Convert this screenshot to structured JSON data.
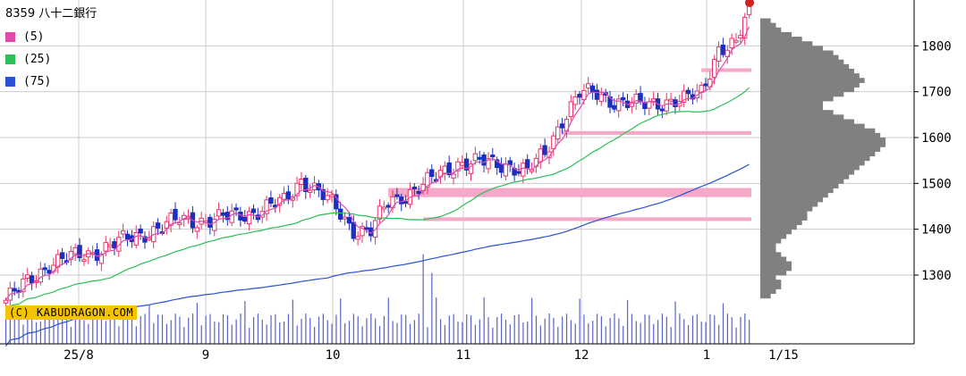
{
  "header": {
    "title": "8359 八十二銀行"
  },
  "legend": [
    {
      "label": "(5)",
      "color": "#e04aa8"
    },
    {
      "label": "(25)",
      "color": "#2bbf5a"
    },
    {
      "label": "(75)",
      "color": "#2a52d6"
    }
  ],
  "copyright": "(C) KABUDRAGON.COM",
  "colors": {
    "up": "#e8346a",
    "down": "#1c2fc0",
    "volume": "#5a63c8",
    "profile": "#808080",
    "band": "#f5a8c8",
    "grid": "#cccccc"
  },
  "chart_data": {
    "type": "candlestick",
    "y_ticks": [
      1300,
      1400,
      1500,
      1600,
      1700,
      1800
    ],
    "ylim": [
      1150,
      1900
    ],
    "x_tick_labels": [
      "25/8",
      "9",
      "10",
      "11",
      "12",
      "1",
      "1/15"
    ],
    "ma_series": [
      {
        "name": "(5)",
        "color": "#e04aa8"
      },
      {
        "name": "(25)",
        "color": "#2bbf5a"
      },
      {
        "name": "(75)",
        "color": "#2a52d6"
      }
    ],
    "close_anchors": [
      [
        0,
        1245
      ],
      [
        10,
        1325
      ],
      [
        20,
        1350
      ],
      [
        30,
        1385
      ],
      [
        40,
        1420
      ],
      [
        48,
        1420
      ],
      [
        58,
        1440
      ],
      [
        64,
        1460
      ],
      [
        68,
        1510
      ],
      [
        72,
        1480
      ],
      [
        76,
        1445
      ],
      [
        80,
        1400
      ],
      [
        84,
        1395
      ],
      [
        88,
        1460
      ],
      [
        96,
        1495
      ],
      [
        104,
        1545
      ],
      [
        110,
        1545
      ],
      [
        116,
        1540
      ],
      [
        120,
        1525
      ],
      [
        124,
        1565
      ],
      [
        128,
        1640
      ],
      [
        132,
        1695
      ],
      [
        136,
        1695
      ],
      [
        140,
        1680
      ],
      [
        146,
        1670
      ],
      [
        152,
        1680
      ],
      [
        156,
        1680
      ],
      [
        160,
        1700
      ],
      [
        164,
        1795
      ],
      [
        168,
        1800
      ],
      [
        170,
        1855
      ],
      [
        171,
        1880
      ]
    ],
    "resistance_bands": [
      {
        "low": 1470,
        "high": 1490,
        "from_index": 88,
        "to_index": 171
      },
      {
        "low": 1418,
        "high": 1426,
        "from_index": 96,
        "to_index": 171
      },
      {
        "low": 1606,
        "high": 1614,
        "from_index": 128,
        "to_index": 171
      },
      {
        "low": 1743,
        "high": 1751,
        "from_index": 160,
        "to_index": 171
      }
    ],
    "price_profile": {
      "from": 1250,
      "step": 10,
      "weights": [
        2,
        3,
        4,
        4,
        3,
        5,
        6,
        6,
        5,
        4,
        3,
        3,
        4,
        5,
        6,
        7,
        8,
        9,
        9,
        10,
        11,
        12,
        13,
        14,
        15,
        16,
        17,
        18,
        19,
        20,
        21,
        22,
        23,
        24,
        24,
        23,
        22,
        20,
        18,
        16,
        14,
        12,
        12,
        14,
        16,
        18,
        19,
        20,
        19,
        18,
        17,
        16,
        15,
        14,
        12,
        10,
        8,
        6,
        4,
        3,
        2
      ]
    }
  }
}
